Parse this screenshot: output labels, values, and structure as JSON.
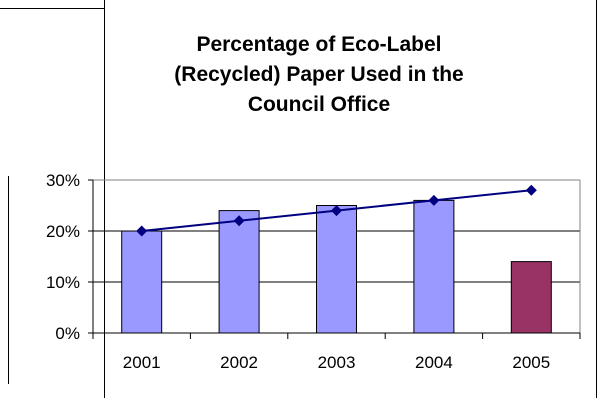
{
  "chart_data": {
    "type": "bar",
    "title_lines": [
      "Percentage of Eco-Label",
      "(Recycled) Paper Used in the",
      "Council Office"
    ],
    "categories": [
      "2001",
      "2002",
      "2003",
      "2004",
      "2005"
    ],
    "ylim": [
      0,
      30
    ],
    "yticks": [
      "0%",
      "10%",
      "20%",
      "30%"
    ],
    "grid": true,
    "legend": "none",
    "series": [
      {
        "type": "bar",
        "values": [
          20,
          24,
          25,
          26,
          14
        ],
        "colors": [
          "#9999FF",
          "#9999FF",
          "#9999FF",
          "#9999FF",
          "#993366"
        ]
      },
      {
        "type": "line",
        "values": [
          20,
          22,
          24,
          26,
          28
        ],
        "color": "#000080"
      }
    ],
    "colors": {
      "bar": "#9999FF",
      "bar_highlight": "#993366",
      "line": "#000080",
      "plot_border": "#808080",
      "grid": "#000000"
    }
  }
}
